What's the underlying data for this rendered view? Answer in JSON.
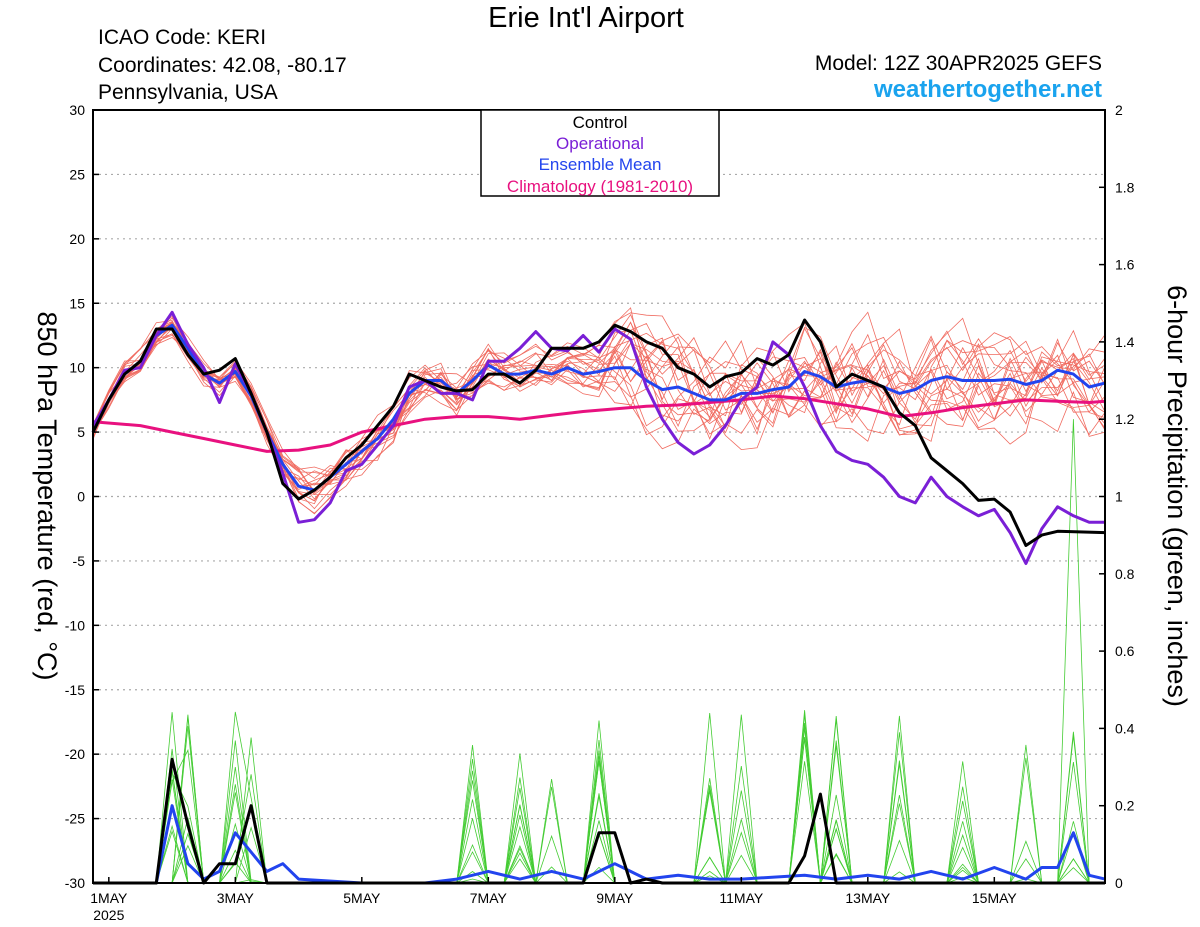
{
  "header": {
    "title": "Erie Int'l Airport",
    "icao": "ICAO Code: KERI",
    "coords": "Coordinates: 42.08, -80.17",
    "region": "Pennsylvania, USA",
    "model": "Model: 12Z 30APR2025 GEFS",
    "site": "weathertogether.net"
  },
  "colors": {
    "control": "#000000",
    "operational": "#7a1fd6",
    "ensemble_mean": "#2244ee",
    "climatology": "#e8117f",
    "temp_members": "#f06b60",
    "precip_members": "#44cc33",
    "site": "#1aa3ee"
  },
  "chart_data": {
    "type": "line",
    "title": "Erie Int'l Airport",
    "ylabel": "850 hPa Temperature (red, °C)",
    "y2label": "6-hour Precipitation (green, inches)",
    "ylim": [
      -30,
      30
    ],
    "y2lim": [
      0,
      2
    ],
    "yticks": [
      -30,
      -25,
      -20,
      -15,
      -10,
      -5,
      0,
      5,
      10,
      15,
      20,
      25,
      30
    ],
    "y2ticks": [
      0,
      0.2,
      0.4,
      0.6,
      0.8,
      1,
      1.2,
      1.4,
      1.6,
      1.8,
      2
    ],
    "xlim": [
      0.75,
      16.75
    ],
    "xticks": [
      {
        "day": 1,
        "label": "1MAY",
        "sub": "2025"
      },
      {
        "day": 3,
        "label": "3MAY"
      },
      {
        "day": 5,
        "label": "5MAY"
      },
      {
        "day": 7,
        "label": "7MAY"
      },
      {
        "day": 9,
        "label": "9MAY"
      },
      {
        "day": 11,
        "label": "11MAY"
      },
      {
        "day": 13,
        "label": "13MAY"
      },
      {
        "day": 15,
        "label": "15MAY"
      }
    ],
    "x_unit": "day of May 2025 (UTC), 6-hour steps",
    "grid": true,
    "legend": {
      "position": "top-center",
      "entries": [
        "Control",
        "Operational",
        "Ensemble Mean",
        "Climatology (1981-2010)"
      ]
    },
    "series": [
      {
        "name": "Control",
        "axis": "temperature",
        "points": [
          [
            0.75,
            5
          ],
          [
            1,
            7.5
          ],
          [
            1.25,
            9.5
          ],
          [
            1.5,
            10.5
          ],
          [
            1.75,
            13
          ],
          [
            2,
            13
          ],
          [
            2.25,
            11
          ],
          [
            2.5,
            9.5
          ],
          [
            2.75,
            9.8
          ],
          [
            3,
            10.7
          ],
          [
            3.25,
            8
          ],
          [
            3.5,
            5
          ],
          [
            3.75,
            1
          ],
          [
            4,
            -0.2
          ],
          [
            4.25,
            0.5
          ],
          [
            4.5,
            1.5
          ],
          [
            4.75,
            3
          ],
          [
            5,
            4
          ],
          [
            5.25,
            5.5
          ],
          [
            5.5,
            7
          ],
          [
            5.75,
            9.5
          ],
          [
            6,
            9
          ],
          [
            6.25,
            8.5
          ],
          [
            6.5,
            8.2
          ],
          [
            6.75,
            8.3
          ],
          [
            7,
            9.5
          ],
          [
            7.25,
            9.5
          ],
          [
            7.5,
            8.8
          ],
          [
            7.75,
            9.8
          ],
          [
            8,
            11.5
          ],
          [
            8.25,
            11.5
          ],
          [
            8.5,
            11.5
          ],
          [
            8.75,
            12
          ],
          [
            9,
            13.3
          ],
          [
            9.25,
            12.8
          ],
          [
            9.5,
            12
          ],
          [
            9.75,
            11.5
          ],
          [
            10,
            10
          ],
          [
            10.25,
            9.5
          ],
          [
            10.5,
            8.5
          ],
          [
            10.75,
            9.3
          ],
          [
            11,
            9.6
          ],
          [
            11.25,
            10.7
          ],
          [
            11.5,
            10.2
          ],
          [
            11.75,
            11
          ],
          [
            12,
            13.7
          ],
          [
            12.25,
            12
          ],
          [
            12.5,
            8.5
          ],
          [
            12.75,
            9.5
          ],
          [
            13,
            9
          ],
          [
            13.25,
            8.5
          ],
          [
            13.5,
            6.5
          ],
          [
            13.75,
            5.5
          ],
          [
            14,
            3
          ],
          [
            14.25,
            2
          ],
          [
            14.5,
            1
          ],
          [
            14.75,
            -0.3
          ],
          [
            15,
            -0.2
          ],
          [
            15.25,
            -1.2
          ],
          [
            15.5,
            -3.8
          ],
          [
            15.75,
            -3
          ],
          [
            16,
            -2.7
          ],
          [
            16.75,
            -2.8
          ]
        ]
      },
      {
        "name": "Operational",
        "axis": "temperature",
        "points": [
          [
            0.75,
            5.5
          ],
          [
            1,
            7.5
          ],
          [
            1.25,
            9.8
          ],
          [
            1.5,
            10
          ],
          [
            1.75,
            12.5
          ],
          [
            2,
            14.3
          ],
          [
            2.25,
            11.8
          ],
          [
            2.5,
            10
          ],
          [
            2.75,
            7.3
          ],
          [
            3,
            10.3
          ],
          [
            3.25,
            8
          ],
          [
            3.5,
            5
          ],
          [
            3.75,
            1.8
          ],
          [
            4,
            -2
          ],
          [
            4.25,
            -1.8
          ],
          [
            4.5,
            -0.5
          ],
          [
            4.75,
            2
          ],
          [
            5,
            2.5
          ],
          [
            5.25,
            4
          ],
          [
            5.5,
            5.5
          ],
          [
            5.75,
            8.5
          ],
          [
            6,
            9
          ],
          [
            6.25,
            8
          ],
          [
            6.5,
            8
          ],
          [
            6.75,
            7.5
          ],
          [
            7,
            10.5
          ],
          [
            7.25,
            10.5
          ],
          [
            7.5,
            11.5
          ],
          [
            7.75,
            12.8
          ],
          [
            8,
            11.5
          ],
          [
            8.25,
            11.3
          ],
          [
            8.5,
            12.5
          ],
          [
            8.75,
            11.2
          ],
          [
            9,
            13
          ],
          [
            9.25,
            12.2
          ],
          [
            9.5,
            8.5
          ],
          [
            9.75,
            6
          ],
          [
            10,
            4.2
          ],
          [
            10.25,
            3.3
          ],
          [
            10.5,
            4
          ],
          [
            10.75,
            5.5
          ],
          [
            11,
            7.5
          ],
          [
            11.25,
            8.5
          ],
          [
            11.5,
            12
          ],
          [
            11.75,
            11
          ],
          [
            12,
            8.5
          ],
          [
            12.25,
            5.5
          ],
          [
            12.5,
            3.5
          ],
          [
            12.75,
            2.8
          ],
          [
            13,
            2.5
          ],
          [
            13.25,
            1.5
          ],
          [
            13.5,
            0
          ],
          [
            13.75,
            -0.5
          ],
          [
            14,
            1.5
          ],
          [
            14.25,
            0
          ],
          [
            14.5,
            -0.8
          ],
          [
            14.75,
            -1.5
          ],
          [
            15,
            -1
          ],
          [
            15.25,
            -2.8
          ],
          [
            15.5,
            -5.2
          ],
          [
            15.75,
            -2.5
          ],
          [
            16,
            -0.8
          ],
          [
            16.25,
            -1.5
          ],
          [
            16.5,
            -2
          ],
          [
            16.75,
            -2
          ]
        ]
      },
      {
        "name": "Ensemble Mean",
        "axis": "temperature",
        "points": [
          [
            0.75,
            5
          ],
          [
            1,
            7.5
          ],
          [
            1.25,
            9.5
          ],
          [
            1.5,
            10.5
          ],
          [
            1.75,
            12.5
          ],
          [
            2,
            13.3
          ],
          [
            2.25,
            11.5
          ],
          [
            2.5,
            9.5
          ],
          [
            2.75,
            8.8
          ],
          [
            3,
            9.7
          ],
          [
            3.25,
            7.8
          ],
          [
            3.5,
            5
          ],
          [
            3.75,
            2.5
          ],
          [
            4,
            0.8
          ],
          [
            4.25,
            0.5
          ],
          [
            4.5,
            1.5
          ],
          [
            4.75,
            2.5
          ],
          [
            5,
            3.5
          ],
          [
            5.25,
            4.5
          ],
          [
            5.5,
            6
          ],
          [
            5.75,
            8
          ],
          [
            6,
            9
          ],
          [
            6.25,
            9
          ],
          [
            6.5,
            8
          ],
          [
            6.75,
            9
          ],
          [
            7,
            10.2
          ],
          [
            7.25,
            9.5
          ],
          [
            7.5,
            9.5
          ],
          [
            7.75,
            9.8
          ],
          [
            8,
            9.5
          ],
          [
            8.25,
            10
          ],
          [
            8.5,
            9.5
          ],
          [
            8.75,
            9.7
          ],
          [
            9,
            10
          ],
          [
            9.25,
            10
          ],
          [
            9.5,
            9
          ],
          [
            9.75,
            8.3
          ],
          [
            10,
            8.5
          ],
          [
            10.25,
            8
          ],
          [
            10.5,
            7.5
          ],
          [
            10.75,
            7.5
          ],
          [
            11,
            8
          ],
          [
            11.25,
            8
          ],
          [
            11.5,
            8.3
          ],
          [
            11.75,
            8.5
          ],
          [
            12,
            9.7
          ],
          [
            12.25,
            9.3
          ],
          [
            12.5,
            8.5
          ],
          [
            12.75,
            8.8
          ],
          [
            13,
            9
          ],
          [
            13.25,
            8.5
          ],
          [
            13.5,
            8
          ],
          [
            13.75,
            8.3
          ],
          [
            14,
            9
          ],
          [
            14.25,
            9.3
          ],
          [
            14.5,
            9
          ],
          [
            14.75,
            9
          ],
          [
            15,
            9
          ],
          [
            15.25,
            9.1
          ],
          [
            15.5,
            8.7
          ],
          [
            15.75,
            9
          ],
          [
            16,
            9.8
          ],
          [
            16.25,
            9.5
          ],
          [
            16.5,
            8.5
          ],
          [
            16.75,
            8.8
          ]
        ]
      },
      {
        "name": "Climatology (1981-2010)",
        "axis": "temperature",
        "points": [
          [
            0.75,
            5.8
          ],
          [
            1.5,
            5.5
          ],
          [
            2,
            5
          ],
          [
            2.5,
            4.5
          ],
          [
            3,
            4
          ],
          [
            3.5,
            3.5
          ],
          [
            4,
            3.6
          ],
          [
            4.5,
            4
          ],
          [
            5,
            5
          ],
          [
            5.5,
            5.5
          ],
          [
            6,
            6
          ],
          [
            6.5,
            6.2
          ],
          [
            7,
            6.2
          ],
          [
            7.5,
            6
          ],
          [
            8,
            6.3
          ],
          [
            8.5,
            6.6
          ],
          [
            9,
            6.8
          ],
          [
            9.5,
            7
          ],
          [
            10,
            7.1
          ],
          [
            10.5,
            7.3
          ],
          [
            11,
            7.5
          ],
          [
            11.5,
            7.8
          ],
          [
            12,
            7.6
          ],
          [
            12.5,
            7.2
          ],
          [
            13,
            6.8
          ],
          [
            13.5,
            6.2
          ],
          [
            14,
            6.5
          ],
          [
            14.5,
            6.9
          ],
          [
            15,
            7.2
          ],
          [
            15.5,
            7.5
          ],
          [
            16,
            7.4
          ],
          [
            16.5,
            7.3
          ],
          [
            16.75,
            7.4
          ]
        ]
      },
      {
        "name": "Control",
        "axis": "precipitation",
        "points": [
          [
            0.75,
            0
          ],
          [
            1.75,
            0
          ],
          [
            2,
            0.32
          ],
          [
            2.25,
            0.15
          ],
          [
            2.5,
            0
          ],
          [
            2.75,
            0.05
          ],
          [
            3,
            0.05
          ],
          [
            3.25,
            0.2
          ],
          [
            3.5,
            0
          ],
          [
            4,
            0
          ],
          [
            8.5,
            0
          ],
          [
            8.75,
            0.13
          ],
          [
            9,
            0.13
          ],
          [
            9.25,
            0
          ],
          [
            9.5,
            0.01
          ],
          [
            9.75,
            0
          ],
          [
            11.75,
            0
          ],
          [
            12,
            0.07
          ],
          [
            12.25,
            0.23
          ],
          [
            12.5,
            0
          ],
          [
            16.75,
            0
          ]
        ]
      },
      {
        "name": "Ensemble Mean",
        "axis": "precipitation",
        "points": [
          [
            0.75,
            0
          ],
          [
            1.75,
            0
          ],
          [
            2,
            0.2
          ],
          [
            2.25,
            0.05
          ],
          [
            2.5,
            0.01
          ],
          [
            2.75,
            0.03
          ],
          [
            3,
            0.13
          ],
          [
            3.25,
            0.08
          ],
          [
            3.5,
            0.03
          ],
          [
            3.75,
            0.05
          ],
          [
            4,
            0.01
          ],
          [
            5,
            0
          ],
          [
            6,
            0
          ],
          [
            6.5,
            0.01
          ],
          [
            7,
            0.03
          ],
          [
            7.5,
            0.01
          ],
          [
            8,
            0.03
          ],
          [
            8.5,
            0.01
          ],
          [
            9,
            0.05
          ],
          [
            9.25,
            0.03
          ],
          [
            9.5,
            0.01
          ],
          [
            10,
            0.02
          ],
          [
            10.5,
            0.01
          ],
          [
            11,
            0.01
          ],
          [
            12,
            0.02
          ],
          [
            12.5,
            0.01
          ],
          [
            13,
            0.02
          ],
          [
            13.5,
            0.01
          ],
          [
            14,
            0.03
          ],
          [
            14.5,
            0.01
          ],
          [
            15,
            0.04
          ],
          [
            15.5,
            0.01
          ],
          [
            15.75,
            0.04
          ],
          [
            16,
            0.04
          ],
          [
            16.25,
            0.13
          ],
          [
            16.5,
            0.02
          ],
          [
            16.75,
            0.01
          ]
        ]
      }
    ]
  }
}
